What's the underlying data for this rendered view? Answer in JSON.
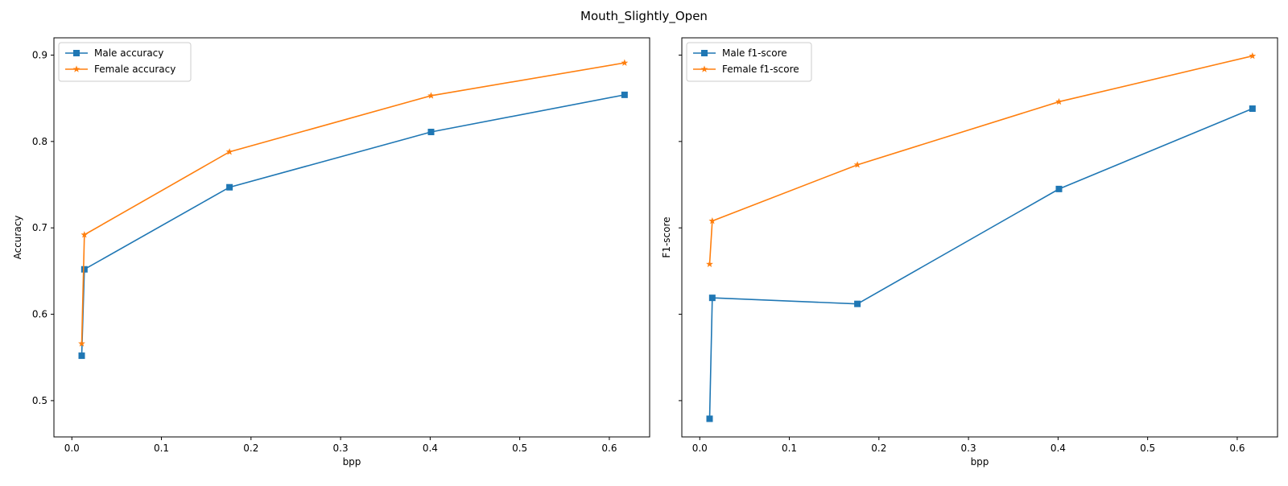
{
  "figure_title": "Mouth_Slightly_Open",
  "chart_data": [
    {
      "type": "line",
      "xlabel": "bpp",
      "ylabel": "Accuracy",
      "xlim": [
        -0.02,
        0.645
      ],
      "ylim": [
        0.458,
        0.92
      ],
      "xticks": [
        0.0,
        0.1,
        0.2,
        0.3,
        0.4,
        0.5,
        0.6
      ],
      "xtick_labels": [
        "0.0",
        "0.1",
        "0.2",
        "0.3",
        "0.4",
        "0.5",
        "0.6"
      ],
      "yticks": [
        0.5,
        0.6,
        0.7,
        0.8,
        0.9
      ],
      "ytick_labels": [
        "0.5",
        "0.6",
        "0.7",
        "0.8",
        "0.9"
      ],
      "legend_position": "top-left",
      "grid": false,
      "series": [
        {
          "name": "Male accuracy",
          "marker": "square",
          "color": "#1f77b4",
          "x": [
            0.011,
            0.014,
            0.176,
            0.401,
            0.617
          ],
          "y": [
            0.552,
            0.652,
            0.747,
            0.811,
            0.854
          ]
        },
        {
          "name": "Female accuracy",
          "marker": "star",
          "color": "#ff7f0e",
          "x": [
            0.011,
            0.014,
            0.176,
            0.401,
            0.617
          ],
          "y": [
            0.566,
            0.692,
            0.788,
            0.853,
            0.891
          ]
        }
      ]
    },
    {
      "type": "line",
      "xlabel": "bpp",
      "ylabel": "F1-score",
      "xlim": [
        -0.02,
        0.645
      ],
      "ylim": [
        0.458,
        0.92
      ],
      "xticks": [
        0.0,
        0.1,
        0.2,
        0.3,
        0.4,
        0.5,
        0.6
      ],
      "xtick_labels": [
        "0.0",
        "0.1",
        "0.2",
        "0.3",
        "0.4",
        "0.5",
        "0.6"
      ],
      "yticks": [
        0.5,
        0.6,
        0.7,
        0.8,
        0.9
      ],
      "ytick_labels": [
        "",
        "",
        "",
        "",
        ""
      ],
      "legend_position": "top-left",
      "grid": false,
      "series": [
        {
          "name": "Male f1-score",
          "marker": "square",
          "color": "#1f77b4",
          "x": [
            0.011,
            0.014,
            0.176,
            0.401,
            0.617
          ],
          "y": [
            0.479,
            0.619,
            0.612,
            0.745,
            0.838
          ]
        },
        {
          "name": "Female f1-score",
          "marker": "star",
          "color": "#ff7f0e",
          "x": [
            0.011,
            0.014,
            0.176,
            0.401,
            0.617
          ],
          "y": [
            0.658,
            0.708,
            0.773,
            0.846,
            0.899
          ]
        }
      ]
    }
  ]
}
